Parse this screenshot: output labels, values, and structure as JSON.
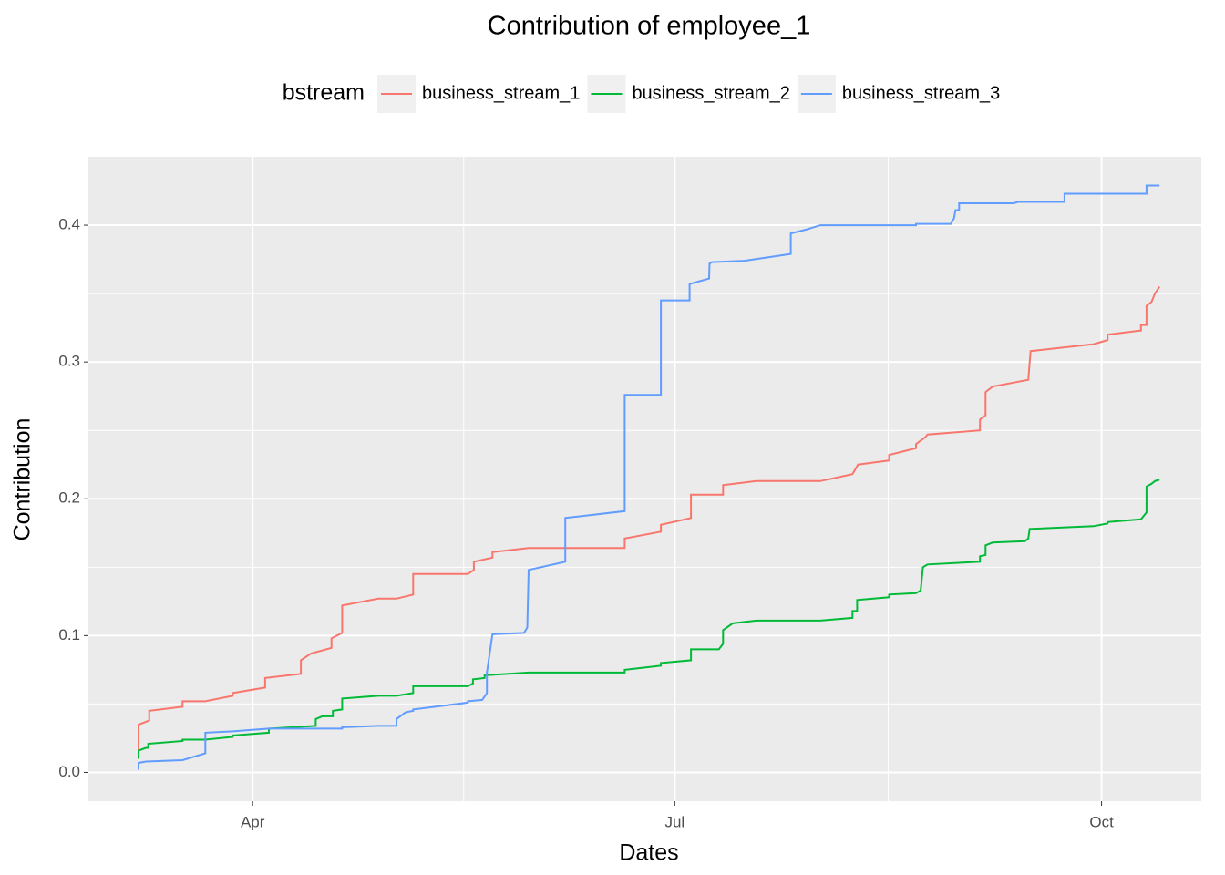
{
  "chart_data": {
    "type": "line",
    "title": "Contribution of employee_1",
    "x_label": "Dates",
    "y_label": "Contribution",
    "legend_title": "bstream",
    "legend_position": "top",
    "grid": true,
    "xlim": [
      55.6,
      295.5
    ],
    "xticks": [
      {
        "value": 91,
        "label": "Apr"
      },
      {
        "value": 182,
        "label": "Jul"
      },
      {
        "value": 274,
        "label": "Oct"
      }
    ],
    "ylim": [
      -0.021,
      0.45
    ],
    "yticks": [
      {
        "value": 0,
        "label": "0.0"
      },
      0.1,
      0.2,
      0.3,
      0.4
    ],
    "series": [
      {
        "name": "business_stream_1",
        "color": "#f8766d",
        "x": [
          66.4,
          66.4,
          68,
          68.7,
          68.7,
          75.9,
          75.9,
          80.8,
          86.7,
          86.7,
          93.7,
          93.7,
          101.4,
          101.4,
          103.6,
          108,
          108,
          110.3,
          110.3,
          118.1,
          122,
          125.6,
          125.6,
          137.4,
          138.7,
          138.7,
          142.7,
          142.7,
          150.5,
          171.2,
          171.2,
          179,
          179,
          185.5,
          185.5,
          192.4,
          192.4,
          199.6,
          213.4,
          220.3,
          221.5,
          228.2,
          228.2,
          234,
          234,
          236,
          236.5,
          247.8,
          247.8,
          249,
          249,
          250.5,
          258.2,
          258.7,
          272.3,
          275.3,
          275.3,
          282.5,
          282.5,
          283.7,
          283.7,
          284.8,
          285.5,
          286.5
        ],
        "values": [
          0.015,
          0.035,
          0.037,
          0.038,
          0.045,
          0.048,
          0.052,
          0.052,
          0.056,
          0.058,
          0.062,
          0.069,
          0.072,
          0.082,
          0.087,
          0.091,
          0.098,
          0.102,
          0.122,
          0.127,
          0.127,
          0.13,
          0.145,
          0.145,
          0.148,
          0.154,
          0.157,
          0.161,
          0.164,
          0.164,
          0.171,
          0.176,
          0.181,
          0.186,
          0.203,
          0.203,
          0.21,
          0.213,
          0.213,
          0.218,
          0.225,
          0.228,
          0.232,
          0.237,
          0.24,
          0.245,
          0.247,
          0.25,
          0.258,
          0.261,
          0.278,
          0.282,
          0.287,
          0.308,
          0.313,
          0.316,
          0.32,
          0.323,
          0.327,
          0.327,
          0.341,
          0.344,
          0.35,
          0.355
        ]
      },
      {
        "name": "business_stream_2",
        "color": "#00ba38",
        "x": [
          66.4,
          66.4,
          68,
          68.5,
          68.5,
          75.9,
          75.9,
          80.8,
          86.7,
          86.7,
          94.5,
          94.5,
          104.6,
          104.6,
          106,
          108.3,
          108.3,
          110.3,
          110.3,
          118.1,
          122,
          125.6,
          125.6,
          137.4,
          138.5,
          138.5,
          141,
          141,
          150.5,
          171.2,
          171.2,
          179,
          179,
          185.5,
          185.5,
          191.5,
          192.4,
          192.4,
          194.5,
          199.6,
          213.4,
          220.3,
          220.3,
          221.3,
          221.3,
          228.2,
          228.2,
          234,
          235,
          235.5,
          236.5,
          247.8,
          247.8,
          249,
          249,
          250.5,
          257.5,
          258.2,
          258.5,
          272.3,
          275.3,
          275.3,
          282.5,
          283.7,
          283.7,
          284.8,
          285.5,
          286.5
        ],
        "values": [
          0.01,
          0.016,
          0.018,
          0.018,
          0.021,
          0.023,
          0.024,
          0.024,
          0.026,
          0.027,
          0.029,
          0.032,
          0.034,
          0.039,
          0.041,
          0.041,
          0.045,
          0.046,
          0.054,
          0.056,
          0.056,
          0.058,
          0.063,
          0.063,
          0.065,
          0.068,
          0.069,
          0.071,
          0.073,
          0.073,
          0.075,
          0.078,
          0.08,
          0.082,
          0.09,
          0.09,
          0.094,
          0.104,
          0.109,
          0.111,
          0.111,
          0.113,
          0.118,
          0.118,
          0.126,
          0.128,
          0.13,
          0.131,
          0.133,
          0.15,
          0.152,
          0.154,
          0.158,
          0.159,
          0.166,
          0.168,
          0.169,
          0.171,
          0.178,
          0.18,
          0.182,
          0.183,
          0.185,
          0.19,
          0.209,
          0.211,
          0.213,
          0.214
        ]
      },
      {
        "name": "business_stream_3",
        "color": "#619cff",
        "x": [
          66.4,
          66.4,
          68,
          75.9,
          80.8,
          80.8,
          86.7,
          94.5,
          110.3,
          110.3,
          118.1,
          122,
          122,
          124,
          125.6,
          125.6,
          137.4,
          137.4,
          140.5,
          141.5,
          141.5,
          142.7,
          149.5,
          150.2,
          150.5,
          158.4,
          158.4,
          171.2,
          171.2,
          179,
          179,
          185.2,
          185.2,
          189.4,
          189.5,
          190,
          197,
          207,
          207,
          210.5,
          213.4,
          234,
          234,
          241.5,
          242.2,
          242.5,
          243.3,
          243.3,
          255,
          256,
          266,
          266,
          283.7,
          283.7,
          286.5
        ],
        "values": [
          0.002,
          0.007,
          0.008,
          0.009,
          0.014,
          0.029,
          0.03,
          0.032,
          0.032,
          0.033,
          0.034,
          0.034,
          0.039,
          0.044,
          0.045,
          0.046,
          0.051,
          0.052,
          0.053,
          0.058,
          0.073,
          0.101,
          0.102,
          0.106,
          0.148,
          0.154,
          0.186,
          0.191,
          0.276,
          0.276,
          0.345,
          0.345,
          0.357,
          0.361,
          0.372,
          0.373,
          0.374,
          0.379,
          0.394,
          0.397,
          0.4,
          0.4,
          0.401,
          0.401,
          0.405,
          0.411,
          0.411,
          0.416,
          0.416,
          0.417,
          0.417,
          0.423,
          0.423,
          0.429,
          0.429
        ]
      }
    ]
  }
}
